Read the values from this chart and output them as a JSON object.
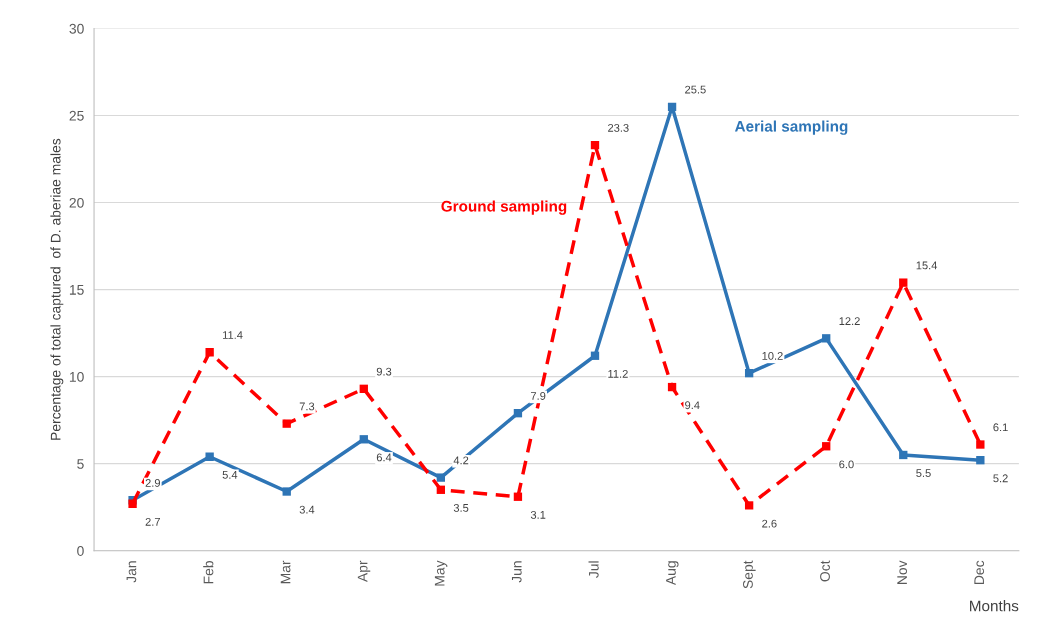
{
  "chart_data": {
    "type": "line",
    "xlabel": "Months",
    "ylabel": "Percentage of total captured  of D. aberiae males",
    "categories": [
      "Jan",
      "Feb",
      "Mar",
      "Apr",
      "May",
      "Jun",
      "Jul",
      "Aug",
      "Sept",
      "Oct",
      "Nov",
      "Dec"
    ],
    "series": [
      {
        "name": "Aerial sampling",
        "color": "#2e75b6",
        "line_style": "solid",
        "values": [
          2.9,
          5.4,
          3.4,
          6.4,
          4.2,
          7.9,
          11.2,
          25.5,
          10.2,
          12.2,
          5.5,
          5.2
        ],
        "value_labels": [
          "2.9",
          "5.4",
          "3.4",
          "6.4",
          "4.2",
          "7.9",
          "11.2",
          "25.5",
          "10.2",
          "12.2",
          "5.5",
          "5.2"
        ]
      },
      {
        "name": "Ground sampling",
        "color": "#ff0000",
        "line_style": "dashed",
        "values": [
          2.7,
          11.4,
          7.3,
          9.3,
          3.5,
          3.1,
          23.3,
          9.4,
          2.6,
          6.0,
          15.4,
          6.1
        ],
        "value_labels": [
          "2.7",
          "11.4",
          "7.3",
          "9.3",
          "3.5",
          "3.1",
          "23.3",
          "9.4",
          "2.6",
          "6.0",
          "15.4",
          "6.1"
        ]
      }
    ],
    "ylim": [
      0,
      30
    ],
    "yticks": [
      0,
      5,
      10,
      15,
      20,
      25,
      30
    ],
    "grid": "y",
    "legend": false,
    "marker": "square"
  }
}
